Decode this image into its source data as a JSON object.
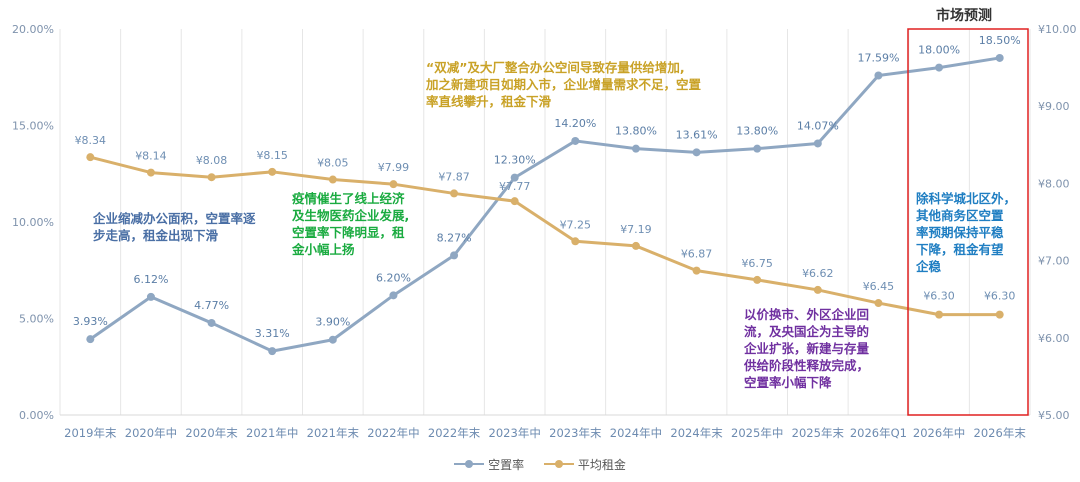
{
  "chart_data": {
    "type": "line",
    "categories": [
      "2019年末",
      "2020年中",
      "2020年末",
      "2021年中",
      "2021年末",
      "2022年中",
      "2022年末",
      "2023年中",
      "2023年末",
      "2024年中",
      "2024年末",
      "2025年中",
      "2025年末",
      "2026年Q1",
      "2026年中",
      "2026年末"
    ],
    "series": [
      {
        "name": "空置率",
        "axis": "left",
        "color": "#8fa7c2",
        "values": [
          3.93,
          6.12,
          4.77,
          3.31,
          3.9,
          6.2,
          8.27,
          12.3,
          14.2,
          13.8,
          13.61,
          13.8,
          14.07,
          17.59,
          18.0,
          18.5
        ],
        "labels": [
          "3.93%",
          "6.12%",
          "4.77%",
          "3.31%",
          "3.90%",
          "6.20%",
          "8.27%",
          "12.30%",
          "14.20%",
          "13.80%",
          "13.61%",
          "13.80%",
          "14.07%",
          "17.59%",
          "18.00%",
          "18.50%"
        ]
      },
      {
        "name": "平均租金",
        "axis": "right",
        "color": "#d9b06a",
        "values": [
          8.34,
          8.14,
          8.08,
          8.15,
          8.05,
          7.99,
          7.87,
          7.77,
          7.25,
          7.19,
          6.87,
          6.75,
          6.62,
          6.45,
          6.3,
          6.3
        ],
        "labels": [
          "¥8.34",
          "¥8.14",
          "¥8.08",
          "¥8.15",
          "¥8.05",
          "¥7.99",
          "¥7.87",
          "¥7.77",
          "¥7.25",
          "¥7.19",
          "¥6.87",
          "¥6.75",
          "¥6.62",
          "¥6.45",
          "¥6.30",
          "¥6.30"
        ]
      }
    ],
    "y_left": {
      "range": [
        0,
        20
      ],
      "ticks": [
        "0.00%",
        "5.00%",
        "10.00%",
        "15.00%",
        "20.00%"
      ]
    },
    "y_right": {
      "range": [
        5,
        10
      ],
      "ticks": [
        "¥5.00",
        "¥6.00",
        "¥7.00",
        "¥8.00",
        "¥9.00",
        "¥10.00"
      ]
    },
    "grid": "vertical",
    "legend": "bottom-center"
  },
  "forecast_title": "市场预测",
  "annotations": [
    {
      "id": "note-enterprise-shrink",
      "color": "#4a6fa5",
      "lines": [
        "企业缩减办公面积，空置率逐",
        "步走高，租金出现下滑"
      ]
    },
    {
      "id": "note-epidemic",
      "color": "#1aab40",
      "lines": [
        "疫情催生了线上经济",
        "及生物医药企业发展,",
        "空置率下降明显，租",
        "金小幅上扬"
      ]
    },
    {
      "id": "note-double-reduction",
      "color": "#c9a227",
      "lines": [
        "“双减”及大厂整合办公空间导致存量供给增加,",
        "加之新建项目如期入市，企业增量需求不足，空置",
        "率直线攀升，租金下滑"
      ]
    },
    {
      "id": "note-price-for-volume",
      "color": "#7030a0",
      "lines": [
        "以价换市、外区企业回",
        "流，及央国企为主导的",
        "企业扩张，新建与存量",
        "供给阶段性释放完成，",
        "空置率小幅下降"
      ]
    },
    {
      "id": "note-forecast",
      "color": "#1f7ec2",
      "lines": [
        "除科学城北区外，",
        "其他商务区空置",
        "率预期保持平稳",
        "下降，租金有望",
        "企稳"
      ]
    }
  ],
  "colors": {
    "forecast_box": "#e02020",
    "axis_text": "#7f93ad"
  }
}
